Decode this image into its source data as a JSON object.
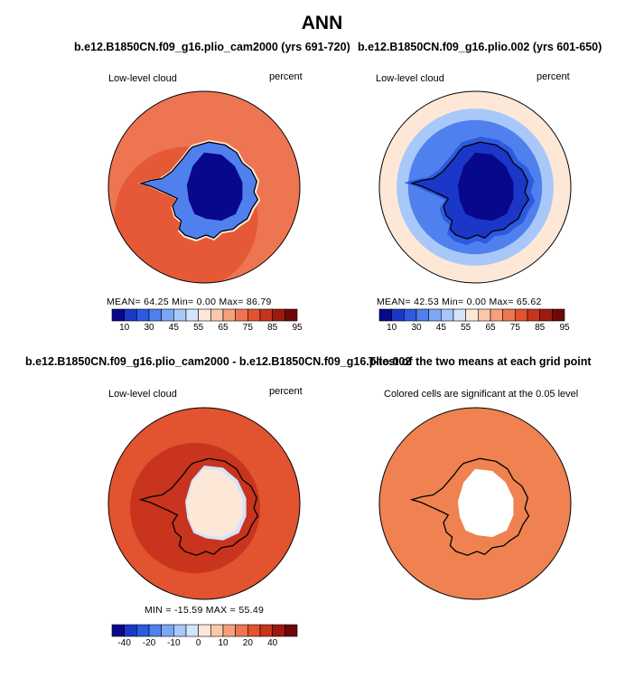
{
  "title": "ANN",
  "colors": {
    "scale": [
      "#08088c",
      "#1a37c8",
      "#2c5ae0",
      "#4f80ee",
      "#7ba7f5",
      "#a8c8f9",
      "#d5e4fc",
      "#fde8d8",
      "#fbc8ab",
      "#f6a07e",
      "#ee7552",
      "#e2532f",
      "#c8341d",
      "#9e1a0f",
      "#6e0807"
    ],
    "significant": "#ef8250",
    "coast": "#000000"
  },
  "panels": [
    {
      "title": "b.e12.B1850CN.f09_g16.plio_cam2000 (yrs 691-720)",
      "variable": "Low-level cloud",
      "units": "percent",
      "stats": "MEAN=   64.25   Min=     0.00   Max=    86.79",
      "ticks": [
        "10",
        "30",
        "45",
        "55",
        "65",
        "75",
        "85",
        "95"
      ]
    },
    {
      "title": "b.e12.B1850CN.f09_g16.plio.002 (yrs 601-650)",
      "variable": "Low-level cloud",
      "units": "percent",
      "stats": "MEAN=   42.53   Min=     0.00   Max=    65.62",
      "ticks": [
        "10",
        "30",
        "45",
        "55",
        "65",
        "75",
        "85",
        "95"
      ]
    },
    {
      "title": "b.e12.B1850CN.f09_g16.plio_cam2000 - b.e12.B1850CN.f09_g16.plio.002",
      "variable": "Low-level cloud",
      "units": "percent",
      "stats": "MIN = -15.59  MAX =   55.49",
      "ticks": [
        "-40",
        "-20",
        "-10",
        "0",
        "10",
        "20",
        "40"
      ]
    },
    {
      "title": "T-test of the two means at each grid point",
      "subtitle": "Colored cells are significant at the 0.05 level"
    }
  ],
  "chart_data": [
    {
      "type": "heatmap",
      "projection": "south-polar-stereographic",
      "title": "b.e12.B1850CN.f09_g16.plio_cam2000 (yrs 691-720)",
      "label_left": "Low-level cloud",
      "label_right": "percent",
      "mean": 64.25,
      "min": 0.0,
      "max": 86.79,
      "colorbar_levels": [
        10,
        20,
        30,
        40,
        45,
        50,
        55,
        60,
        65,
        70,
        75,
        80,
        85,
        90,
        95
      ]
    },
    {
      "type": "heatmap",
      "projection": "south-polar-stereographic",
      "title": "b.e12.B1850CN.f09_g16.plio.002 (yrs 601-650)",
      "label_left": "Low-level cloud",
      "label_right": "percent",
      "mean": 42.53,
      "min": 0.0,
      "max": 65.62,
      "colorbar_levels": [
        10,
        20,
        30,
        40,
        45,
        50,
        55,
        60,
        65,
        70,
        75,
        80,
        85,
        90,
        95
      ]
    },
    {
      "type": "heatmap",
      "projection": "south-polar-stereographic",
      "title": "b.e12.B1850CN.f09_g16.plio_cam2000 - b.e12.B1850CN.f09_g16.plio.002",
      "label_left": "Low-level cloud",
      "label_right": "percent",
      "min": -15.59,
      "max": 55.49,
      "colorbar_levels": [
        -50,
        -40,
        -30,
        -20,
        -15,
        -10,
        -5,
        0,
        5,
        10,
        15,
        20,
        30,
        40,
        50
      ]
    },
    {
      "type": "heatmap",
      "projection": "south-polar-stereographic",
      "title": "T-test of the two means at each grid point",
      "subtitle": "Colored cells are significant at the 0.05 level",
      "significance_level": 0.05
    }
  ]
}
